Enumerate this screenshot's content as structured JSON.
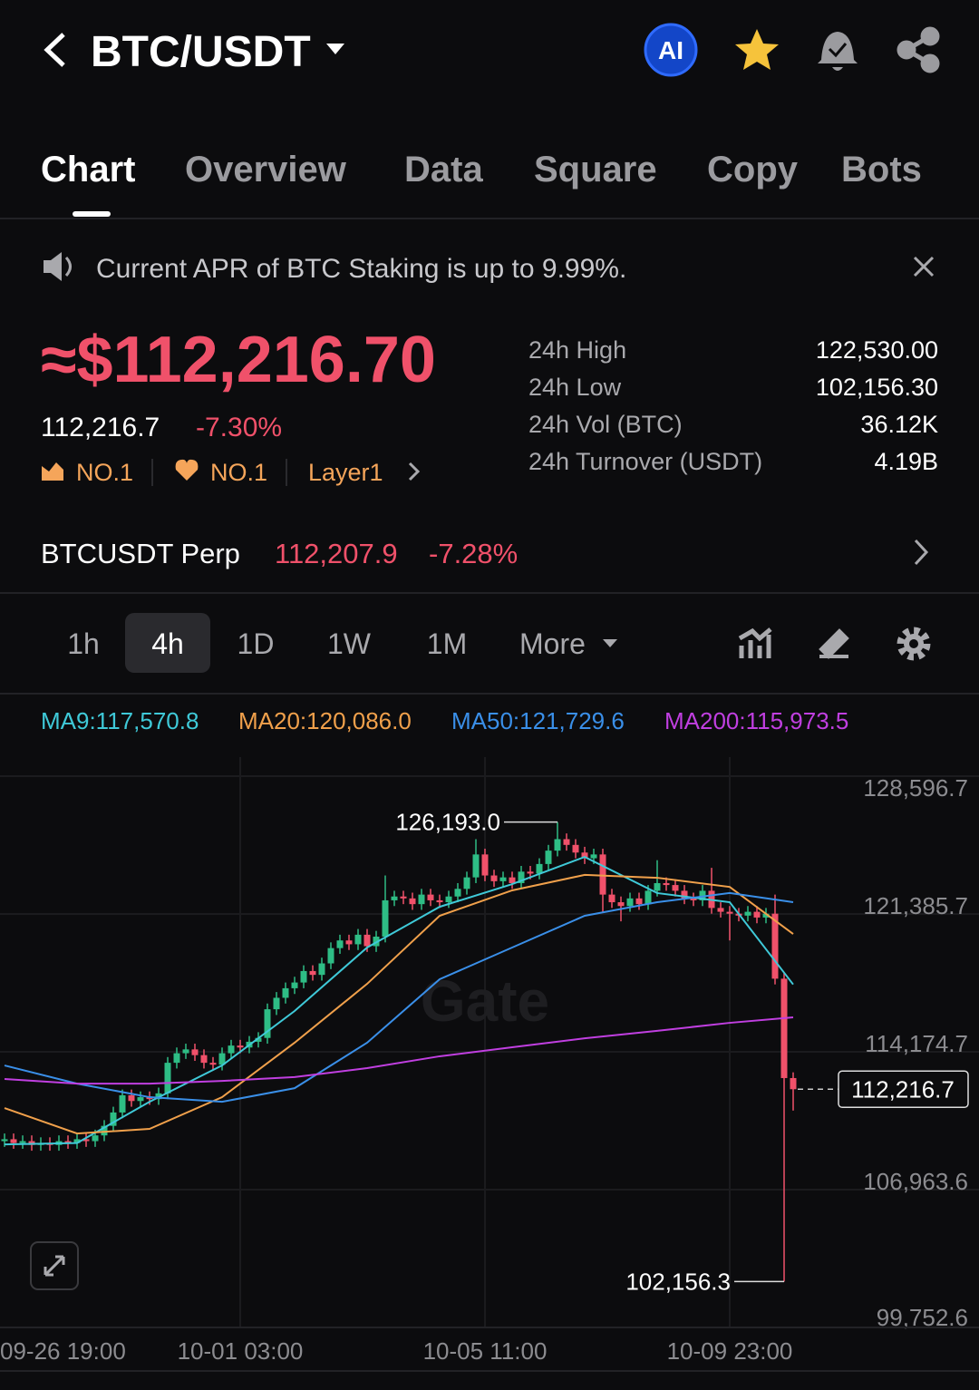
{
  "header": {
    "title": "BTC/USDT",
    "ai_badge": "AI"
  },
  "tabs": [
    "Chart",
    "Overview",
    "Data",
    "Square",
    "Copy",
    "Bots"
  ],
  "banner": "Current APR of BTC Staking is up to 9.99%.",
  "price": {
    "approx": "≈$112,216.70",
    "last": "112,216.7",
    "change": "-7.30%",
    "ranks": [
      "NO.1",
      "NO.1"
    ],
    "tag": "Layer1"
  },
  "stats": [
    {
      "label": "24h High",
      "value": "122,530.00"
    },
    {
      "label": "24h Low",
      "value": "102,156.30"
    },
    {
      "label": "24h Vol (BTC)",
      "value": "36.12K"
    },
    {
      "label": "24h Turnover (USDT)",
      "value": "4.19B"
    }
  ],
  "perp": {
    "name": "BTCUSDT Perp",
    "price": "112,207.9",
    "change": "-7.28%"
  },
  "timeframes": [
    "1h",
    "4h",
    "1D",
    "1W",
    "1M",
    "More"
  ],
  "chart_data": {
    "type": "candlestick",
    "watermark": "Gate",
    "up_color": "#2ebd85",
    "down_color": "#f0516a",
    "grid": true,
    "xlim": [
      -0.5,
      107.5
    ],
    "xticks": [
      {
        "value": -1,
        "label": "09-26 19:00"
      },
      {
        "value": 26,
        "label": "10-01 03:00"
      },
      {
        "value": 53,
        "label": "10-05 11:00"
      },
      {
        "value": 80,
        "label": "10-09 23:00"
      }
    ],
    "ylim": [
      99752.6,
      128596.7
    ],
    "yticks": [
      {
        "value": 128596.7,
        "label": "128,596.7"
      },
      {
        "value": 121385.7,
        "label": "121,385.7"
      },
      {
        "value": 114174.7,
        "label": "114,174.7"
      },
      {
        "value": 106963.6,
        "label": "106,963.6"
      },
      {
        "value": 99752.6,
        "label": "99,752.6"
      }
    ],
    "max_label": "126,193.0",
    "min_label": "102,156.3",
    "last_label": "112,216.7",
    "open": [
      109500,
      109600,
      109400,
      109500,
      109300,
      109400,
      109300,
      109500,
      109400,
      109600,
      109500,
      109800,
      110300,
      111000,
      111900,
      111600,
      111800,
      111700,
      112000,
      113600,
      114100,
      114300,
      114000,
      113600,
      113500,
      114100,
      114500,
      114400,
      114700,
      114900,
      116400,
      117000,
      117500,
      117800,
      118400,
      118200,
      118800,
      119600,
      120000,
      119800,
      120300,
      119700,
      120200,
      122100,
      122300,
      122200,
      121900,
      122400,
      122100,
      122000,
      122300,
      122700,
      123300,
      124500,
      123400,
      123100,
      123300,
      123000,
      123600,
      123500,
      124000,
      124700,
      125300,
      125000,
      124600,
      124300,
      124500,
      122400,
      122000,
      121800,
      122200,
      121900,
      122600,
      123000,
      122900,
      122600,
      122200,
      122100,
      122600,
      121700,
      121500,
      121400,
      121300,
      121500,
      121200,
      121400,
      118000,
      112800
    ],
    "high": [
      109900,
      109900,
      109800,
      109800,
      109700,
      109700,
      109800,
      109800,
      109900,
      109900,
      110100,
      110600,
      111300,
      112200,
      112200,
      112100,
      112100,
      112300,
      113900,
      114400,
      114600,
      114600,
      114300,
      113900,
      114400,
      114800,
      114800,
      115000,
      115200,
      116700,
      117300,
      117800,
      118100,
      118700,
      118700,
      119100,
      119900,
      120300,
      120300,
      120600,
      120600,
      120500,
      123400,
      122600,
      122600,
      122500,
      122700,
      122700,
      122400,
      122600,
      123000,
      123600,
      125300,
      124800,
      123700,
      123600,
      123600,
      123900,
      123900,
      124300,
      125000,
      126193.0,
      125600,
      125300,
      124900,
      124800,
      124800,
      122700,
      122300,
      122500,
      122500,
      122900,
      124200,
      123300,
      123200,
      122900,
      122500,
      122900,
      123800,
      122000,
      121800,
      121700,
      121800,
      121800,
      121700,
      122400,
      118300,
      113100
    ],
    "low": [
      109200,
      109100,
      109100,
      109000,
      109000,
      109000,
      109000,
      109100,
      109100,
      109200,
      109200,
      109500,
      110000,
      110700,
      111300,
      111300,
      111400,
      111400,
      111700,
      113300,
      113800,
      113700,
      113300,
      113200,
      113200,
      113800,
      114100,
      114100,
      114400,
      114600,
      116100,
      116700,
      117200,
      117500,
      117900,
      117900,
      118500,
      119300,
      119500,
      119500,
      119400,
      119400,
      119900,
      121800,
      121900,
      121600,
      121600,
      121800,
      121700,
      121700,
      122000,
      122400,
      123000,
      123100,
      122800,
      122800,
      122700,
      122700,
      123200,
      123200,
      123700,
      124400,
      124700,
      124300,
      124000,
      124000,
      121500,
      121700,
      121000,
      121500,
      121600,
      121600,
      122300,
      122600,
      122300,
      121900,
      121800,
      121800,
      121400,
      121200,
      120000,
      121000,
      121000,
      120900,
      120900,
      117700,
      102156.3,
      111100
    ],
    "close": [
      109600,
      109400,
      109500,
      109300,
      109400,
      109300,
      109500,
      109400,
      109600,
      109500,
      109800,
      110300,
      111000,
      111900,
      111600,
      111800,
      111700,
      112000,
      113600,
      114100,
      114300,
      114000,
      113600,
      113500,
      114100,
      114500,
      114400,
      114700,
      114900,
      116400,
      117000,
      117500,
      117800,
      118400,
      118200,
      118800,
      119600,
      120000,
      119800,
      120300,
      119700,
      120200,
      122100,
      122300,
      122200,
      121900,
      122400,
      122100,
      122000,
      122300,
      122700,
      123300,
      124500,
      123400,
      123100,
      123300,
      123000,
      123600,
      123500,
      124000,
      124700,
      125300,
      125000,
      124600,
      124300,
      124500,
      122400,
      122000,
      121800,
      122200,
      121900,
      122600,
      123000,
      122900,
      122600,
      122200,
      122100,
      122600,
      121700,
      121500,
      121400,
      121300,
      121500,
      121200,
      121400,
      118000,
      112800,
      112216.7
    ],
    "series": [
      {
        "name": "MA9:117,570.8",
        "color": "#3fc9d8",
        "x": [
          0,
          8,
          16,
          24,
          32,
          40,
          48,
          56,
          64,
          72,
          80,
          87
        ],
        "values": [
          109330,
          109400,
          111560,
          113460,
          116310,
          119630,
          121760,
          122950,
          124370,
          122480,
          122000,
          117700
        ]
      },
      {
        "name": "MA20:120,086.0",
        "color": "#f0a04b",
        "x": [
          0,
          8,
          16,
          24,
          32,
          40,
          48,
          56,
          64,
          72,
          80,
          87
        ],
        "values": [
          111230,
          109900,
          110140,
          111800,
          114650,
          117730,
          121290,
          122620,
          123430,
          123280,
          122800,
          120340
        ]
      },
      {
        "name": "MA50:121,729.6",
        "color": "#3a8fe8",
        "x": [
          0,
          8,
          16,
          24,
          32,
          40,
          48,
          56,
          64,
          72,
          80,
          87
        ],
        "values": [
          113460,
          112510,
          111800,
          111560,
          112270,
          114650,
          117970,
          119630,
          121290,
          122000,
          122480,
          122000
        ]
      },
      {
        "name": "MA200:115,973.5",
        "color": "#c03fe0",
        "x": [
          0,
          8,
          16,
          24,
          32,
          40,
          48,
          56,
          64,
          72,
          80,
          87
        ],
        "values": [
          112750,
          112510,
          112510,
          112650,
          112850,
          113320,
          113940,
          114410,
          114880,
          115270,
          115690,
          115980
        ]
      }
    ]
  }
}
